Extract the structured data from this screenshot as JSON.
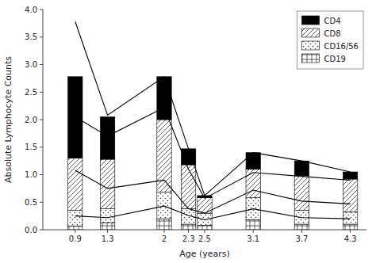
{
  "chart_data": {
    "type": "bar",
    "xlabel": "Age (years)",
    "ylabel": "Absolute Lymphocyte Counts",
    "x": [
      0.9,
      1.3,
      2.0,
      2.3,
      2.5,
      3.1,
      3.7,
      4.3
    ],
    "series": [
      {
        "name": "CD19",
        "type": "bar",
        "color": "white",
        "values": [
          0.07,
          0.13,
          0.2,
          0.1,
          0.08,
          0.18,
          0.1,
          0.1
        ]
      },
      {
        "name": "CD16/56",
        "type": "bar",
        "color": "white",
        "values": [
          0.28,
          0.25,
          0.48,
          0.28,
          0.22,
          0.4,
          0.25,
          0.22
        ]
      },
      {
        "name": "CD8",
        "type": "bar",
        "color": "white",
        "values": [
          0.95,
          0.9,
          1.32,
          0.8,
          0.28,
          0.52,
          0.63,
          0.6
        ]
      },
      {
        "name": "CD4",
        "type": "bar",
        "color": "black",
        "values": [
          1.48,
          0.77,
          0.78,
          0.29,
          0.04,
          0.3,
          0.27,
          0.13
        ]
      },
      {
        "type": "line",
        "color": "black",
        "values": [
          3.78,
          2.08,
          2.78,
          1.47,
          0.62,
          1.4,
          1.25,
          1.05
        ]
      },
      {
        "type": "line",
        "color": "black",
        "values": [
          2.05,
          1.7,
          2.22,
          1.1,
          0.57,
          1.04,
          0.97,
          0.9
        ]
      },
      {
        "type": "line",
        "color": "black",
        "values": [
          1.08,
          0.75,
          0.9,
          0.38,
          0.3,
          0.72,
          0.52,
          0.47
        ]
      },
      {
        "type": "line",
        "color": "black",
        "values": [
          0.25,
          0.22,
          0.43,
          0.26,
          0.18,
          0.38,
          0.22,
          0.2
        ]
      }
    ],
    "xlim": [
      0.5,
      4.5
    ],
    "xticks": [
      0.9,
      1.3,
      2.0,
      2.3,
      2.5,
      3.1,
      3.7,
      4.3
    ],
    "ylim": [
      0,
      4.0
    ],
    "yticks": [
      {
        "value": 0,
        "label": "0.0"
      },
      0.5,
      {
        "value": 1.0,
        "label": "1.0"
      },
      1.5,
      {
        "value": 2.0,
        "label": "2.0"
      },
      2.5,
      {
        "value": 3.0,
        "label": "3.0"
      },
      3.5,
      {
        "value": 4.0,
        "label": "4.0"
      }
    ],
    "stacked": true,
    "grid": false,
    "legend": "upper right"
  }
}
